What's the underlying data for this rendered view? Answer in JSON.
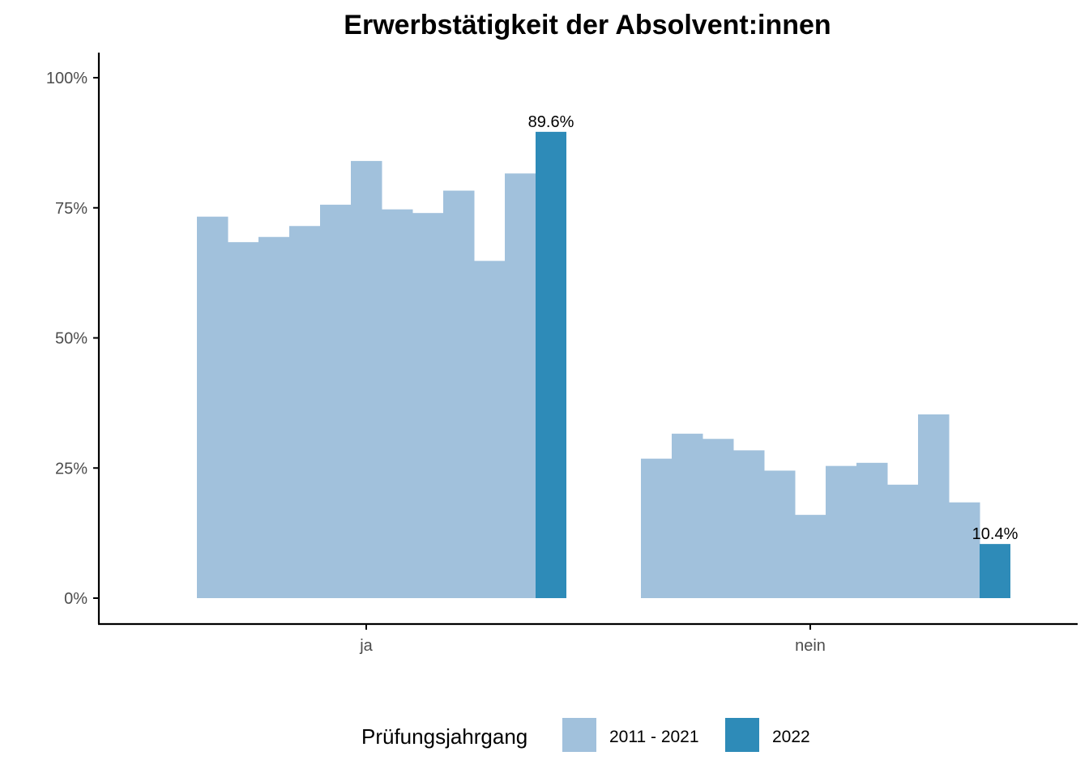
{
  "chart_data": {
    "type": "bar",
    "title": "Erwerbstätigkeit der Absolvent:innen",
    "xlabel": "",
    "ylabel": "",
    "categories": [
      "ja",
      "nein"
    ],
    "ylim": [
      0,
      1
    ],
    "yticks": [
      0,
      0.25,
      0.5,
      0.75,
      1
    ],
    "ytick_labels": [
      "0%",
      "25%",
      "50%",
      "75%",
      "100%"
    ],
    "legend": {
      "title": "Prüfungsjahrgang",
      "position": "bottom",
      "entries": [
        {
          "label": "2011 - 2021",
          "color": "#a1c1dc"
        },
        {
          "label": "2022",
          "color": "#2e8bb8"
        }
      ]
    },
    "groups": [
      {
        "category": "ja",
        "history": [
          0.733,
          0.684,
          0.694,
          0.715,
          0.756,
          0.84,
          0.747,
          0.74,
          0.783,
          0.648,
          0.816
        ],
        "current": 0.896,
        "current_label": "89.6%"
      },
      {
        "category": "nein",
        "history": [
          0.268,
          0.316,
          0.306,
          0.284,
          0.245,
          0.16,
          0.254,
          0.26,
          0.218,
          0.353,
          0.184
        ],
        "current": 0.104,
        "current_label": "10.4%"
      }
    ],
    "colors": {
      "history": "#a1c1dc",
      "current": "#2e8bb8",
      "axis": "#000000",
      "tick_text": "#4d4d4d"
    },
    "grid": false
  }
}
